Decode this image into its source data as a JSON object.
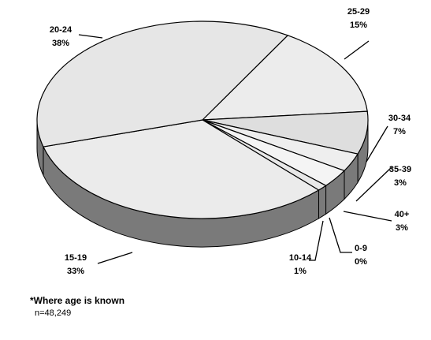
{
  "chart_data": {
    "type": "pie",
    "categories": [
      "25-29",
      "30-34",
      "35-39",
      "40+",
      "0-9",
      "10-14",
      "15-19",
      "20-24"
    ],
    "values": [
      15,
      7,
      3,
      3,
      0,
      1,
      33,
      38
    ],
    "value_labels": [
      "15%",
      "7%",
      "3%",
      "3%",
      "0%",
      "1%",
      "33%",
      "38%"
    ],
    "colors": [
      "#ececec",
      "#dedede",
      "#eeeeee",
      "#f4f4f4",
      "#e0e0e0",
      "#e8e8e8",
      "#ebebeb",
      "#e6e6e6"
    ],
    "side_color": "#7a7a7a"
  },
  "footnote": {
    "title": "*Where age is known",
    "sample": "n=48,249"
  }
}
